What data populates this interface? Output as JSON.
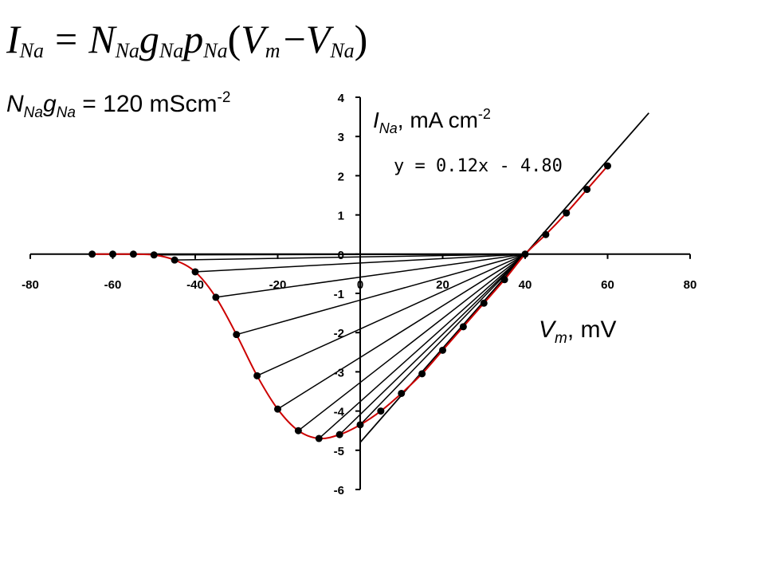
{
  "equation": {
    "lhs": "I",
    "lhs_sub": "Na",
    "eq": "=",
    "n": "N",
    "n_sub": "Na",
    "g": "g",
    "g_sub": "Na",
    "p": "p",
    "p_sub": "Na",
    "paren_open": "(",
    "vm": "V",
    "vm_sub": "m",
    "minus": "−",
    "vna": "V",
    "vna_sub": "Na",
    "paren_close": ")"
  },
  "conductance": {
    "n": "N",
    "n_sub": "Na",
    "g": "g",
    "g_sub": "Na",
    "value": " = 120 mScm",
    "exp": "-2"
  },
  "colors": {
    "curve": "#cc0000",
    "marker": "#000000",
    "axis": "#000000",
    "chord": "#000000"
  },
  "chart_data": {
    "type": "line",
    "xlim": [
      -80,
      80
    ],
    "ylim": [
      -6,
      4
    ],
    "xticks": [
      -80,
      -60,
      -40,
      -20,
      0,
      20,
      40,
      60,
      80
    ],
    "xtick_labels": [
      "-80",
      "-60",
      "-40",
      "-20",
      "0",
      "20",
      "40",
      "60",
      "80"
    ],
    "yticks": [
      -6,
      -5,
      -4,
      -3,
      -2,
      -1,
      0,
      1,
      2,
      3,
      4
    ],
    "ytick_labels": [
      "-6",
      "-5",
      "-4",
      "-3",
      "-2",
      "-1",
      "0",
      "1",
      "2",
      "3",
      "4"
    ],
    "ylabel": {
      "main": "I",
      "sub": "Na",
      "rest": ", mA cm",
      "exp": "-2"
    },
    "xlabel": {
      "main": "V",
      "sub": "m",
      "rest": ", mV"
    },
    "trendline_label": "y = 0.12x - 4.80",
    "trendline": {
      "slope": 0.12,
      "intercept": -4.8,
      "x_range": [
        0,
        70
      ]
    },
    "reversal_point": [
      40,
      0
    ],
    "series": [
      {
        "x": [
          -65,
          -60,
          -55,
          -50,
          -45,
          -40,
          -35,
          -30,
          -25,
          -20,
          -15,
          -10,
          -5,
          0,
          5,
          10,
          15,
          20,
          25,
          30,
          35,
          40,
          45,
          50,
          55,
          60
        ],
        "y": [
          0.0,
          0.0,
          0.0,
          -0.02,
          -0.15,
          -0.45,
          -1.1,
          -2.05,
          -3.1,
          -3.95,
          -4.5,
          -4.7,
          -4.6,
          -4.35,
          -4.0,
          -3.55,
          -3.05,
          -2.45,
          -1.85,
          -1.25,
          -0.65,
          0.0,
          0.5,
          1.05,
          1.65,
          2.25
        ]
      }
    ],
    "chords_from_points": [
      -65,
      -60,
      -55,
      -50,
      -45,
      -40,
      -35,
      -30,
      -25,
      -20,
      -15,
      -10,
      -5,
      0
    ]
  }
}
